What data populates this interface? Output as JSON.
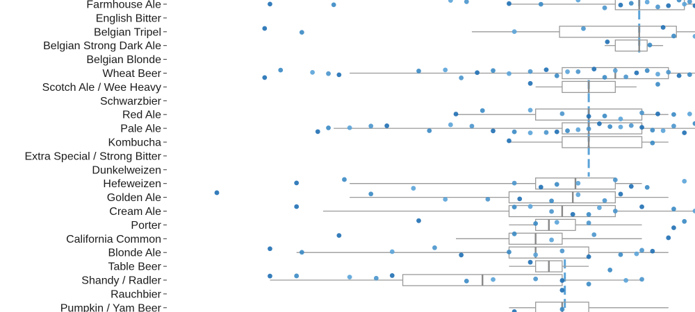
{
  "chart_data": {
    "type": "box",
    "title": "",
    "xlabel": "",
    "ylabel": "",
    "xlim": [
      1,
      10
    ],
    "orientation": "horizontal",
    "grid": false,
    "legend": "none",
    "reference_line": {
      "style": "dashed",
      "color": "#5aa3d8",
      "segments": [
        {
          "x": 8.95,
          "from": "Farmhouse Ale",
          "to": "Belgian Strong Dark Ale"
        },
        {
          "x": 8.0,
          "from": "Scotch Ale / Wee Heavy",
          "to": "Dunkelweizen"
        },
        {
          "x": 7.55,
          "from": "Table Beer",
          "to": "Pumpkin / Yam Beer"
        }
      ]
    },
    "categories": [
      "Farmhouse Ale",
      "English Bitter",
      "Belgian Tripel",
      "Belgian Strong Dark Ale",
      "Belgian Blonde",
      "Wheat Beer",
      "Scotch Ale / Wee Heavy",
      "Schwarzbier",
      "Red Ale",
      "Pale Ale",
      "Kombucha",
      "Extra Special / Strong Bitter",
      "Dunkelweizen",
      "Hefeweizen",
      "Golden Ale",
      "Cream Ale",
      "Porter",
      "California Common",
      "Blonde Ale",
      "Table Beer",
      "Shandy / Radler",
      "Rauchbier",
      "Pumpkin / Yam Beer"
    ],
    "boxes": [
      {
        "category": "Farmhouse Ale",
        "whisker_low": 6.5,
        "q1": 8.5,
        "median": 8.95,
        "q3": 9.8,
        "whisker_high": 10.0
      },
      {
        "category": "Belgian Tripel",
        "whisker_low": 5.8,
        "q1": 7.45,
        "median": 8.95,
        "q3": 9.65,
        "whisker_high": 10.0
      },
      {
        "category": "Belgian Strong Dark Ale",
        "whisker_low": 8.3,
        "q1": 8.5,
        "median": 8.95,
        "q3": 9.1,
        "whisker_high": 9.4
      },
      {
        "category": "Wheat Beer",
        "whisker_low": 3.5,
        "q1": 7.5,
        "median": 8.5,
        "q3": 9.5,
        "whisker_high": 10.0
      },
      {
        "category": "Scotch Ale / Wee Heavy",
        "whisker_low": 7.0,
        "q1": 7.5,
        "median": 8.0,
        "q3": 8.5,
        "whisker_high": 8.9
      },
      {
        "category": "Red Ale",
        "whisker_low": 5.5,
        "q1": 7.0,
        "median": 8.0,
        "q3": 9.0,
        "whisker_high": 9.5
      },
      {
        "category": "Pale Ale",
        "whisker_low": 3.2,
        "q1": 7.5,
        "median": 8.0,
        "q3": 9.0,
        "whisker_high": 10.0
      },
      {
        "category": "Kombucha",
        "whisker_low": 6.5,
        "q1": 7.5,
        "median": 8.0,
        "q3": 9.0,
        "whisker_high": 9.5
      },
      {
        "category": "Hefeweizen",
        "whisker_low": 3.5,
        "q1": 7.0,
        "median": 7.75,
        "q3": 8.5,
        "whisker_high": 9.0
      },
      {
        "category": "Golden Ale",
        "whisker_low": 3.5,
        "q1": 6.5,
        "median": 7.7,
        "q3": 8.5,
        "whisker_high": 9.5
      },
      {
        "category": "Cream Ale",
        "whisker_low": 3.0,
        "q1": 6.5,
        "median": 7.5,
        "q3": 8.5,
        "whisker_high": 10.0
      },
      {
        "category": "Porter",
        "whisker_low": 6.5,
        "q1": 7.0,
        "median": 7.25,
        "q3": 7.75,
        "whisker_high": 9.0
      },
      {
        "category": "California Common",
        "whisker_low": 5.5,
        "q1": 6.5,
        "median": 7.0,
        "q3": 7.5,
        "whisker_high": 9.0
      },
      {
        "category": "Blonde Ale",
        "whisker_low": 2.5,
        "q1": 6.5,
        "median": 7.0,
        "q3": 8.0,
        "whisker_high": 9.5
      },
      {
        "category": "Table Beer",
        "whisker_low": 6.5,
        "q1": 7.0,
        "median": 7.25,
        "q3": 7.5,
        "whisker_high": 8.0
      },
      {
        "category": "Shandy / Radler",
        "whisker_low": 2.0,
        "q1": 4.5,
        "median": 6.0,
        "q3": 7.5,
        "whisker_high": 9.0
      },
      {
        "category": "Pumpkin / Yam Beer",
        "whisker_low": 6.5,
        "q1": 7.0,
        "median": 7.5,
        "q3": 8.0,
        "whisker_high": 9.5
      }
    ],
    "points": [
      {
        "category": "Farmhouse Ale",
        "x": [
          2.0,
          3.2,
          5.4,
          5.7,
          6.5,
          7.1,
          7.8,
          8.3,
          8.6,
          8.8,
          9.1,
          9.3,
          9.5,
          9.7,
          9.8,
          9.9,
          10.0
        ]
      },
      {
        "category": "Belgian Tripel",
        "x": [
          1.9,
          2.6,
          6.6,
          7.9,
          9.4,
          9.6,
          10.0
        ]
      },
      {
        "category": "Belgian Strong Dark Ale",
        "x": [
          8.35,
          9.15
        ]
      },
      {
        "category": "Wheat Beer",
        "x": [
          1.9,
          2.2,
          2.8,
          3.1,
          3.3,
          4.8,
          5.3,
          5.6,
          5.9,
          6.2,
          6.5,
          6.9,
          7.2,
          7.4,
          7.6,
          7.8,
          8.1,
          8.3,
          8.5,
          8.7,
          8.9,
          9.1,
          9.3,
          9.5,
          9.7,
          9.9
        ]
      },
      {
        "category": "Scotch Ale / Wee Heavy",
        "x": [
          6.9,
          9.3
        ]
      },
      {
        "category": "Red Ale",
        "x": [
          5.5,
          6.0,
          6.9,
          7.5,
          8.0,
          8.3,
          8.6,
          9.0,
          9.3,
          9.6,
          9.9
        ]
      },
      {
        "category": "Pale Ale",
        "x": [
          2.9,
          3.1,
          3.5,
          3.9,
          4.2,
          5.0,
          5.4,
          5.8,
          6.2,
          6.6,
          6.9,
          7.2,
          7.4,
          7.6,
          7.8,
          8.0,
          8.2,
          8.4,
          8.6,
          8.8,
          9.0,
          9.2,
          9.4,
          9.6,
          9.8,
          10.0
        ]
      },
      {
        "category": "Kombucha",
        "x": [
          6.5,
          9.2
        ]
      },
      {
        "category": "Hefeweizen",
        "x": [
          2.5,
          3.4,
          4.7,
          6.6,
          7.1,
          7.4,
          7.8,
          8.5,
          8.8,
          9.1,
          9.8
        ]
      },
      {
        "category": "Golden Ale",
        "x": [
          1.0,
          3.9,
          5.3,
          6.1,
          6.7,
          7.3,
          7.8,
          8.3,
          8.6
        ]
      },
      {
        "category": "Cream Ale",
        "x": [
          2.5,
          6.6,
          6.9,
          7.3,
          7.7,
          8.0,
          8.2,
          8.5,
          9.0,
          9.6,
          10.0
        ]
      },
      {
        "category": "Porter",
        "x": [
          4.8,
          7.0,
          7.4,
          8.0,
          9.6,
          9.8
        ]
      },
      {
        "category": "California Common",
        "x": [
          3.3,
          6.6,
          7.3,
          8.1,
          9.5
        ]
      },
      {
        "category": "Blonde Ale",
        "x": [
          2.0,
          2.6,
          4.3,
          5.1,
          5.6,
          6.5,
          7.0,
          7.5,
          8.0,
          8.6,
          8.9,
          9.0,
          9.2
        ]
      },
      {
        "category": "Table Beer",
        "x": [
          6.9,
          8.4
        ]
      },
      {
        "category": "Shandy / Radler",
        "x": [
          2.0,
          2.5,
          3.5,
          4.0,
          4.3,
          5.7,
          6.2,
          7.0,
          7.5,
          8.0,
          8.7,
          9.0
        ]
      },
      {
        "category": "Rauchbier",
        "x": [
          7.5
        ]
      },
      {
        "category": "Pumpkin / Yam Beer",
        "x": [
          6.6,
          7.5
        ]
      }
    ],
    "colors": {
      "points": [
        "#1f6fb4",
        "#3a8ac4",
        "#5aa3d8",
        "#4a95cc"
      ],
      "box": "#999999",
      "mean_line": "#5aa3d8",
      "labels": "#1a1a1a"
    }
  }
}
